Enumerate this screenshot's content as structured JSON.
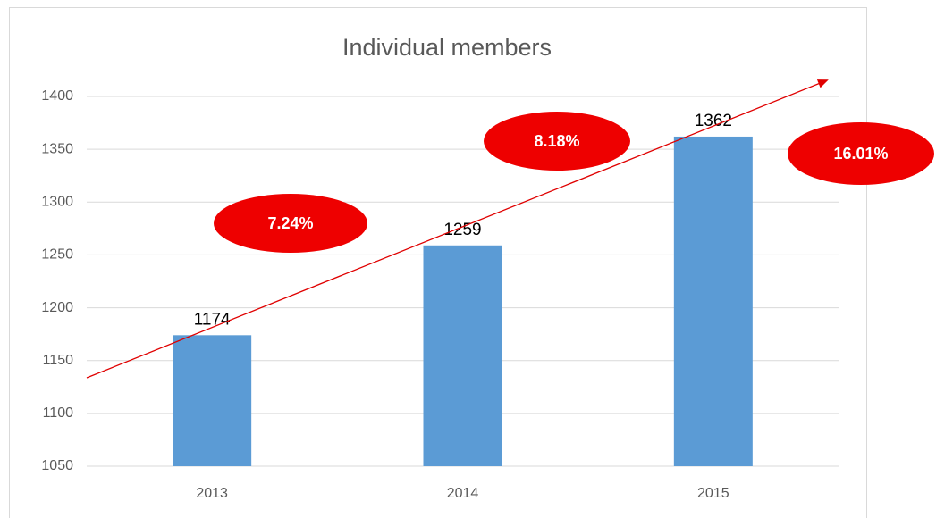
{
  "chart_data": {
    "type": "bar",
    "title": "Individual members",
    "categories": [
      "2013",
      "2014",
      "2015"
    ],
    "values": [
      1174,
      1259,
      1362
    ],
    "color": "#5b9bd5",
    "ylim": [
      1050,
      1400
    ],
    "yticks": [
      1050,
      1100,
      1150,
      1200,
      1250,
      1300,
      1350,
      1400
    ],
    "grid": true,
    "annotations": [
      "7.24%",
      "8.18%",
      "16.01%"
    ]
  }
}
